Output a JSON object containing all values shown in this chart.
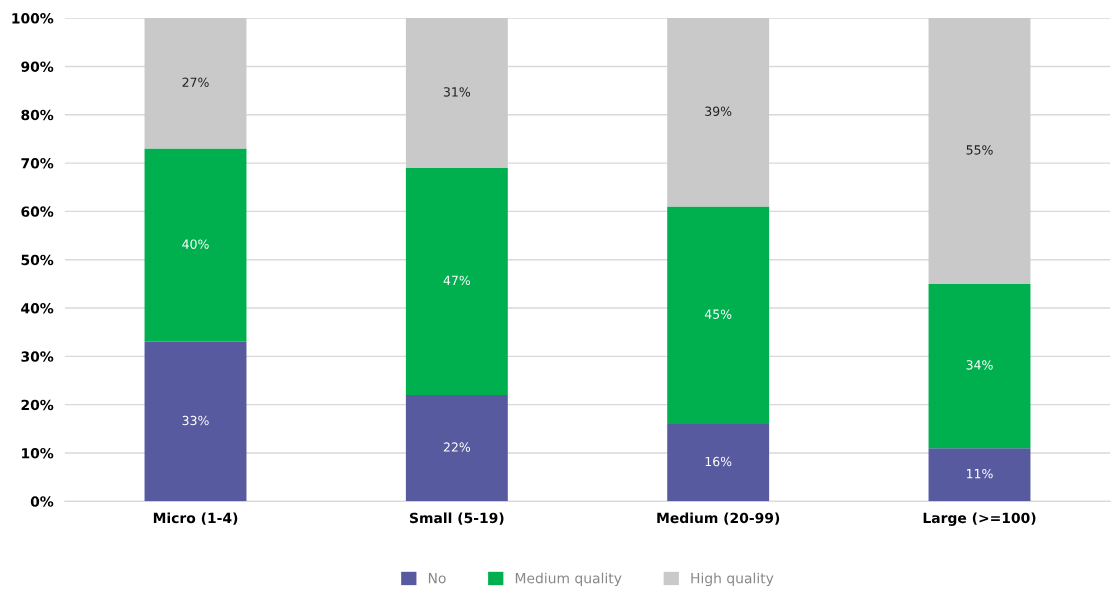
{
  "chart_data": {
    "type": "bar",
    "stacked": true,
    "categories": [
      "Micro (1-4)",
      "Small (5-19)",
      "Medium (20-99)",
      "Large (>=100)"
    ],
    "series": [
      {
        "name": "No",
        "color": "#575a9f",
        "values": [
          33,
          22,
          16,
          11
        ]
      },
      {
        "name": "Medium quality",
        "color": "#00b04f",
        "values": [
          40,
          47,
          45,
          34
        ]
      },
      {
        "name": "High quality",
        "color": "#c9c9c9",
        "values": [
          27,
          31,
          39,
          55
        ]
      }
    ],
    "ylim": [
      0,
      100
    ],
    "yticks": [
      {
        "value": 0,
        "label": "0%"
      },
      {
        "value": 10,
        "label": "10%"
      },
      {
        "value": 20,
        "label": "20%"
      },
      {
        "value": 30,
        "label": "30%"
      },
      {
        "value": 40,
        "label": "40%"
      },
      {
        "value": 50,
        "label": "50%"
      },
      {
        "value": 60,
        "label": "60%"
      },
      {
        "value": 70,
        "label": "70%"
      },
      {
        "value": 80,
        "label": "80%"
      },
      {
        "value": 90,
        "label": "90%"
      },
      {
        "value": 100,
        "label": "100%"
      }
    ],
    "value_labels": [
      [
        "33%",
        "22%",
        "16%",
        "11%"
      ],
      [
        "40%",
        "47%",
        "45%",
        "34%"
      ],
      [
        "27%",
        "31%",
        "39%",
        "55%"
      ]
    ],
    "grid": "y",
    "legend": "bottom"
  }
}
